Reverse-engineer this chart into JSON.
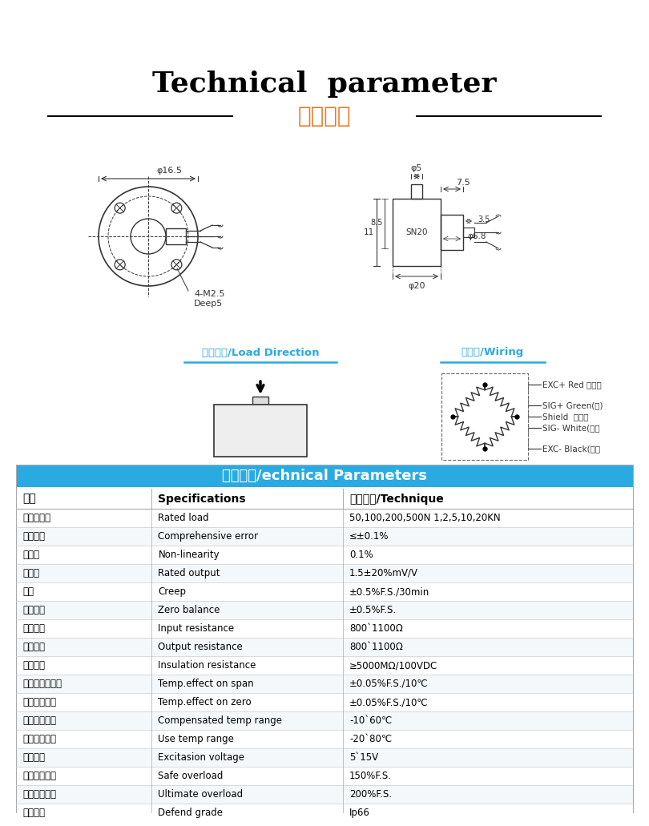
{
  "title_en": "Technical  parameter",
  "title_zh": "技术参数",
  "title_en_fontsize": 26,
  "title_zh_fontsize": 20,
  "title_zh_color": "#E87722",
  "bg_color": "#FFFFFF",
  "table_header_bg": "#29ABE2",
  "table_header_text": "#FFFFFF",
  "table_header_text2": "技术参数/echnical Parameters",
  "table_col_headers": [
    "参数",
    "Specifications",
    "技术指标/Technique"
  ],
  "table_rows": [
    [
      "传感器量程",
      "Rated load",
      "50,100,200,500N 1,2,5,10,20KN"
    ],
    [
      "综合误差",
      "Comprehensive error",
      "≤±0.1%"
    ],
    [
      "非线性",
      "Non-linearity",
      "0.1%"
    ],
    [
      "灵敏度",
      "Rated output",
      "1.5±20%mV/V"
    ],
    [
      "蠕变",
      "Creep",
      "±0.5%F.S./30min"
    ],
    [
      "零点输出",
      "Zero balance",
      "±0.5%F.S."
    ],
    [
      "输入阻抗",
      "Input resistance",
      "800`1100Ω"
    ],
    [
      "输出阻抗",
      "Output resistance",
      "800`1100Ω"
    ],
    [
      "绝缘电阻",
      "Insulation resistance",
      "≥5000MΩ/100VDC"
    ],
    [
      "灵敏度温度影响",
      "Temp.effect on span",
      "±0.05%F.S./10℃"
    ],
    [
      "零点温度影响",
      "Temp.effect on zero",
      "±0.05%F.S./10℃"
    ],
    [
      "温度补偿范围",
      "Compensated temp range",
      "-10`60℃"
    ],
    [
      "使用温度范围",
      "Use temp range",
      "-20`80℃"
    ],
    [
      "激励电压",
      "Excitasion voltage",
      "5`15V"
    ],
    [
      "安全过载范围",
      "Safe overload",
      "150%F.S."
    ],
    [
      "极限过载范围",
      "Ultimate overload",
      "200%F.S."
    ],
    [
      "防护等级",
      "Defend grade",
      "Ip66"
    ]
  ],
  "load_dir_label": "受力方式/Load Direction",
  "wiring_label": "接线图/Wiring",
  "wiring_lines": [
    "EXC+ Red （红）",
    "SIG+ Green(绿)",
    "Shield  屏蔽线",
    "SIG- White(白）",
    "EXC- Black(黑）"
  ],
  "blue_color": "#29ABE2",
  "line_color": "#333333",
  "dim_color": "#444444"
}
